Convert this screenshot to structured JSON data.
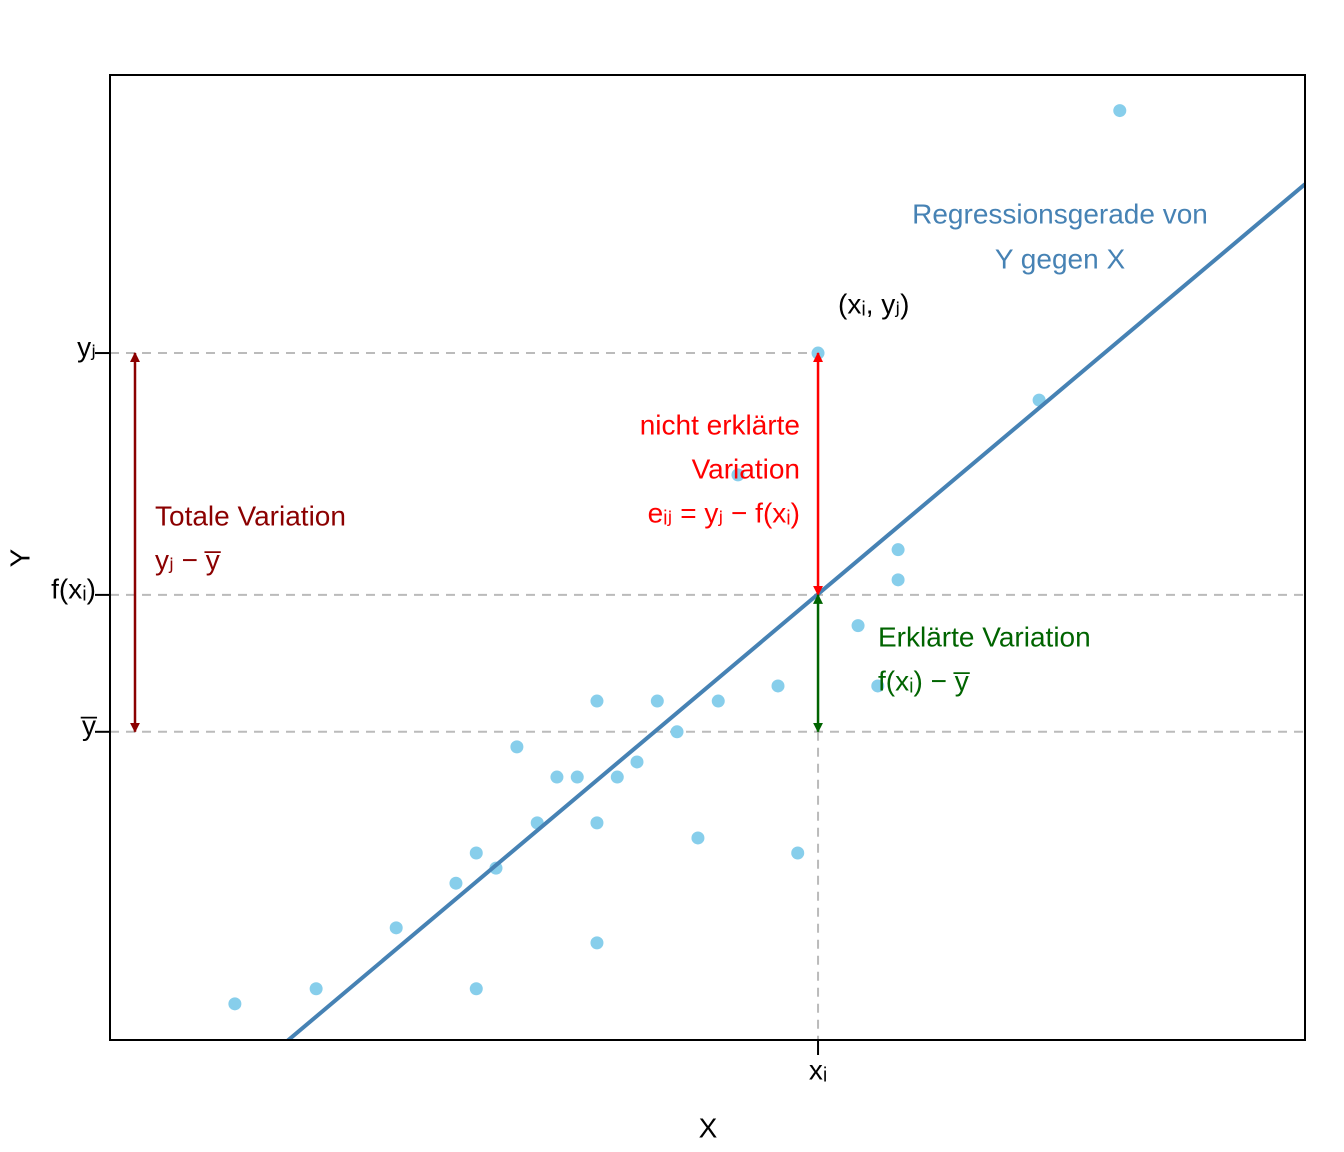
{
  "chart_data": {
    "type": "scatter",
    "xlabel": "X",
    "ylabel": "Y",
    "xlim": [
      0,
      20
    ],
    "ylim": [
      0,
      16
    ],
    "xticks": [
      {
        "value": 11.85,
        "label": "xᵢ"
      }
    ],
    "yticks": [
      {
        "value": 5.11,
        "label": "y̅"
      },
      {
        "value": 7.38,
        "label": "f(xᵢ)"
      },
      {
        "value": 11.39,
        "label": "yⱼ"
      }
    ],
    "series": [
      {
        "name": "(xᵢ, yⱼ)",
        "color": "#87ceeb",
        "x": [
          2.09,
          3.45,
          4.79,
          5.79,
          6.13,
          6.13,
          6.46,
          6.81,
          7.15,
          7.48,
          7.82,
          8.15,
          8.15,
          8.15,
          8.49,
          8.82,
          9.16,
          9.49,
          9.84,
          10.18,
          10.51,
          11.18,
          11.51,
          11.85,
          12.52,
          12.85,
          13.19,
          13.19,
          15.55,
          16.9
        ],
        "values": [
          0.6,
          0.85,
          1.86,
          2.6,
          3.1,
          0.85,
          2.85,
          4.86,
          3.6,
          4.36,
          4.36,
          5.62,
          3.6,
          1.61,
          4.36,
          4.61,
          5.62,
          5.11,
          3.35,
          5.62,
          9.37,
          5.87,
          3.1,
          11.39,
          6.87,
          5.87,
          7.63,
          8.13,
          10.61,
          15.41
        ]
      }
    ],
    "regression": {
      "lines": [
        "Regressionsgerade von",
        "Y gegen X"
      ],
      "color": "#4682b4",
      "intercept": -2.49,
      "slope": 0.834
    },
    "annotations": [
      {
        "lines": [
          "Totale Variation",
          "yⱼ − y̅"
        ],
        "color": "#8b0000"
      },
      {
        "lines": [
          "nicht erklärte",
          "Variation",
          "eᵢⱼ = yⱼ − f(xᵢ)"
        ],
        "color": "#ff0000"
      },
      {
        "lines": [
          "Erklärte Variation",
          "f(xᵢ) − y̅"
        ],
        "color": "#006400"
      }
    ]
  }
}
